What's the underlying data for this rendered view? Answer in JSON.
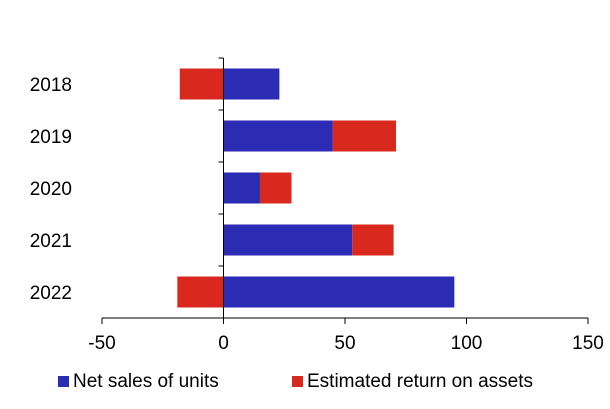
{
  "chart_data": {
    "type": "bar",
    "orientation": "horizontal",
    "stacked": true,
    "title": "",
    "xlabel": "",
    "ylabel": "",
    "categories": [
      "2018",
      "2019",
      "2020",
      "2021",
      "2022"
    ],
    "series": [
      {
        "name": "Net sales of units",
        "color": "#2b2bb3",
        "values": [
          23,
          45,
          15,
          53,
          95
        ]
      },
      {
        "name": "Estimated return on assets",
        "color": "#d9291f",
        "values": [
          -18,
          26,
          13,
          17,
          -19
        ]
      }
    ],
    "xlim": [
      -50,
      150
    ],
    "xticks": [
      "-50",
      "0",
      "50",
      "100",
      "150"
    ],
    "grid": false,
    "legend": "bottom"
  }
}
